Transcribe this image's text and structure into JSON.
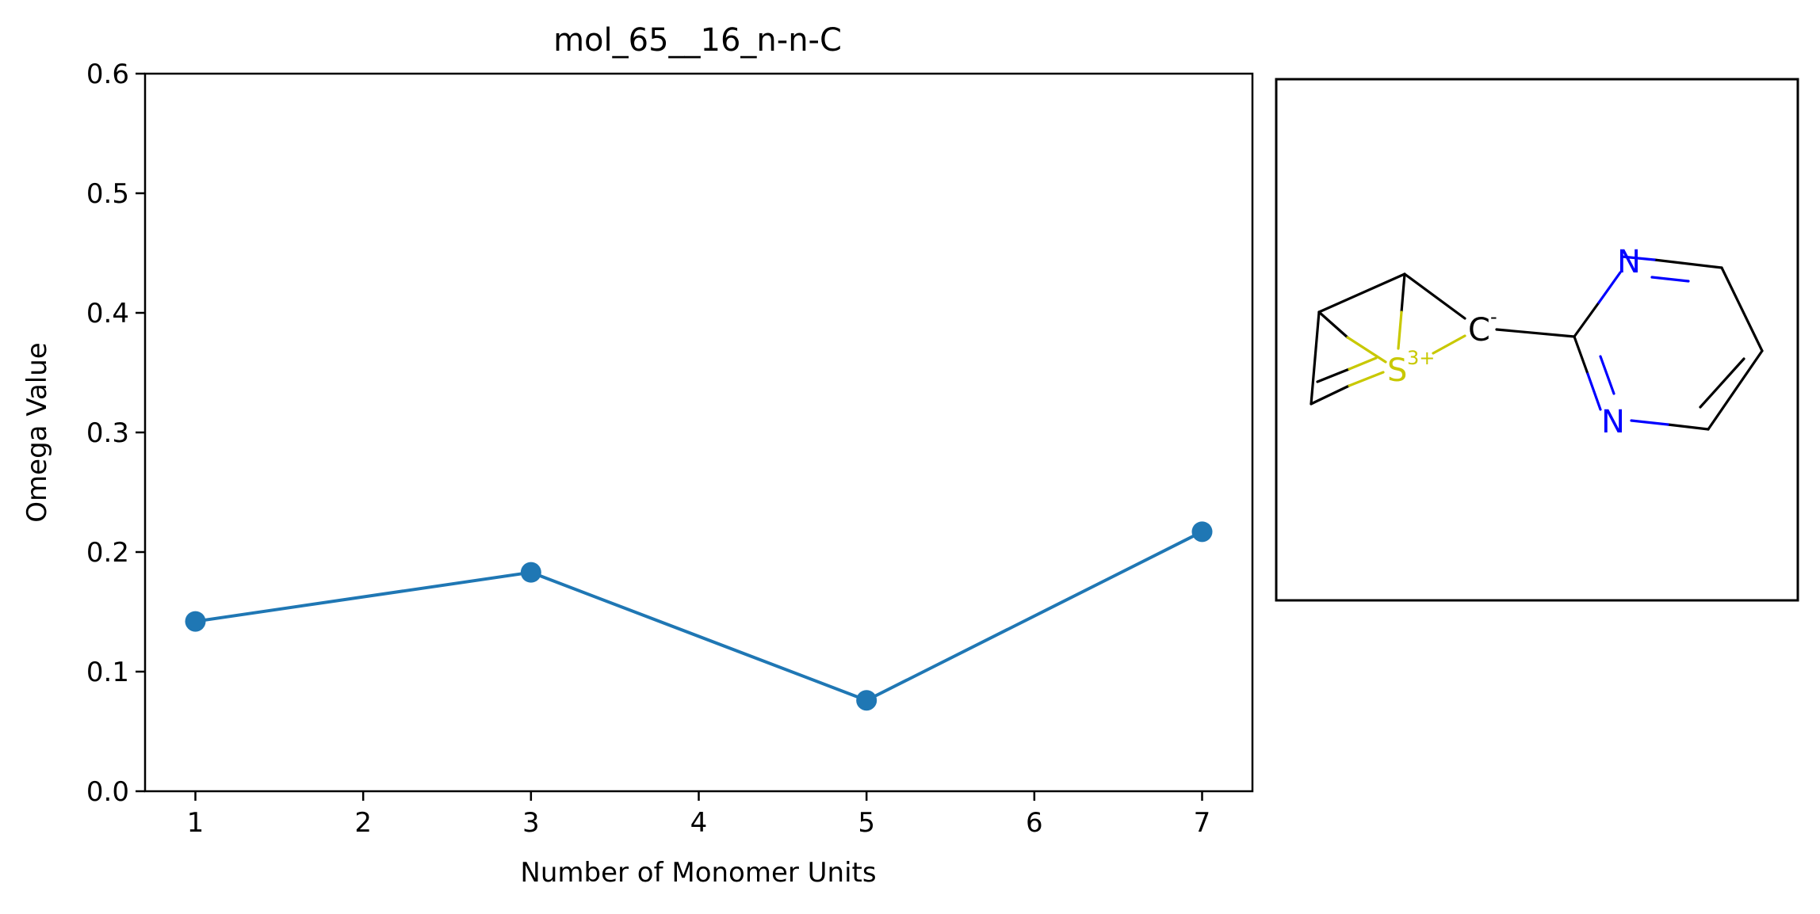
{
  "chart_data": {
    "type": "line",
    "title": "mol_65__16_n-n-C",
    "xlabel": "Number of Monomer Units",
    "ylabel": "Omega Value",
    "xlim": [
      0.7,
      7.3
    ],
    "ylim": [
      0.0,
      0.6
    ],
    "xticks": [
      "1",
      "2",
      "3",
      "4",
      "5",
      "6",
      "7"
    ],
    "yticks": [
      "0.0",
      "0.1",
      "0.2",
      "0.3",
      "0.4",
      "0.5",
      "0.6"
    ],
    "grid": false,
    "series": [
      {
        "color": "#1f77b4",
        "marker": "circle",
        "x": [
          1,
          3,
          5,
          7
        ],
        "y": [
          0.142,
          0.183,
          0.076,
          0.217
        ]
      }
    ]
  },
  "molecule": {
    "atoms": {
      "sulfur": "S",
      "sulfur_charge": "3+",
      "carbanion": "C",
      "carbanion_charge": "-",
      "nitrogen_top": "N",
      "nitrogen_bottom": "N"
    },
    "colors": {
      "carbon": "#000000",
      "sulfur": "#c8c800",
      "nitrogen": "#0000ff"
    }
  }
}
